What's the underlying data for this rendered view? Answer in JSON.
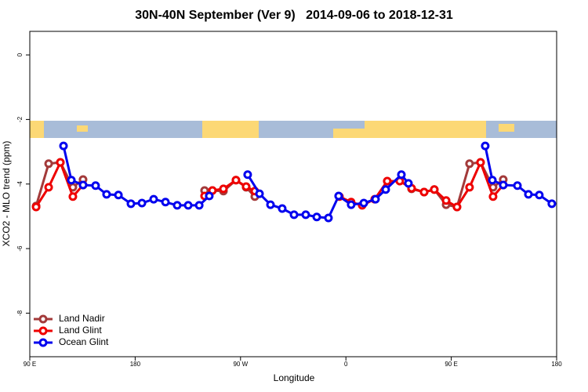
{
  "chart_data": {
    "type": "line",
    "title": "30N-40N September (Ver 9)   2014-09-06 to 2018-12-31",
    "xlabel": "Longitude",
    "ylabel": "XCO2 - MLO trend (ppm)",
    "xlim": [
      90,
      540
    ],
    "ylim": [
      -9.35,
      0.73
    ],
    "xticks": [
      {
        "value": 90,
        "label": "90 E"
      },
      180,
      {
        "value": 270,
        "label": "90 W"
      },
      {
        "value": 360,
        "label": "0"
      },
      {
        "value": 450,
        "label": "90 E"
      },
      {
        "value": 540,
        "label": "180"
      }
    ],
    "yticks": [
      0,
      -2,
      -4,
      -6,
      -8
    ],
    "legend": "bottom-left",
    "series": [
      {
        "name": "Land Nadir",
        "color": "#a33a3a",
        "x": [
          95.4,
          106.1,
          116.1,
          126.8,
          135.5,
          null,
          239.3,
          246.0,
          255.4,
          266.1,
          274.8,
          282.2,
          null,
          416.1,
          426.8,
          435.5,
          445.6,
          454.9,
          465.6,
          475.0,
          485.7,
          494.4
        ],
        "values": [
          -4.68,
          -3.37,
          -3.33,
          -4.1,
          -3.86,
          null,
          -4.2,
          -4.2,
          -4.22,
          -3.88,
          -4.1,
          -4.39,
          null,
          -4.15,
          -4.25,
          -4.17,
          -4.64,
          -4.71,
          -3.37,
          -3.33,
          -4.1,
          -3.86
        ]
      },
      {
        "name": "Land Glint",
        "color": "#ee0000",
        "x": [
          95.4,
          106.1,
          116.1,
          126.8,
          135.5,
          null,
          239.3,
          246.0,
          255.4,
          266.1,
          274.8,
          282.2,
          null,
          354.5,
          364.5,
          373.9,
          384.6,
          395.3,
          406.0,
          416.1,
          426.8,
          435.5,
          445.6,
          454.9,
          465.6,
          475.0,
          485.7,
          494.4
        ],
        "values": [
          -4.71,
          -4.1,
          -3.33,
          -4.39,
          -4.03,
          null,
          -4.37,
          -4.2,
          -4.15,
          -3.88,
          -4.08,
          -4.22,
          null,
          -4.39,
          -4.56,
          -4.66,
          -4.47,
          -3.91,
          -3.91,
          -4.13,
          -4.25,
          -4.17,
          -4.51,
          -4.71,
          -4.1,
          -3.33,
          -4.39,
          -4.03
        ]
      },
      {
        "name": "Ocean Glint",
        "color": "#0000ee",
        "x": [
          118.8,
          125.5,
          135.5,
          146.2,
          155.6,
          165.7,
          176.4,
          185.8,
          195.8,
          205.9,
          215.9,
          225.3,
          234.7,
          243.3,
          null,
          276.1,
          286.2,
          295.6,
          305.6,
          315.7,
          325.7,
          335.1,
          345.1,
          353.8,
          364.5,
          375.3,
          385.3,
          394.0,
          407.4,
          413.4,
          null,
          479.0,
          485.1,
          494.4,
          506.5,
          515.9,
          525.2,
          535.9
        ],
        "values": [
          -2.82,
          -3.88,
          -4.03,
          -4.05,
          -4.32,
          -4.34,
          -4.61,
          -4.59,
          -4.47,
          -4.56,
          -4.66,
          -4.66,
          -4.66,
          -4.37,
          null,
          -3.71,
          -4.3,
          -4.64,
          -4.76,
          -4.95,
          -4.95,
          -5.02,
          -5.05,
          -4.37,
          -4.64,
          -4.59,
          -4.47,
          -4.17,
          -3.71,
          -3.98,
          null,
          -2.82,
          -3.88,
          -4.03,
          -4.05,
          -4.32,
          -4.34,
          -4.61
        ]
      }
    ]
  }
}
